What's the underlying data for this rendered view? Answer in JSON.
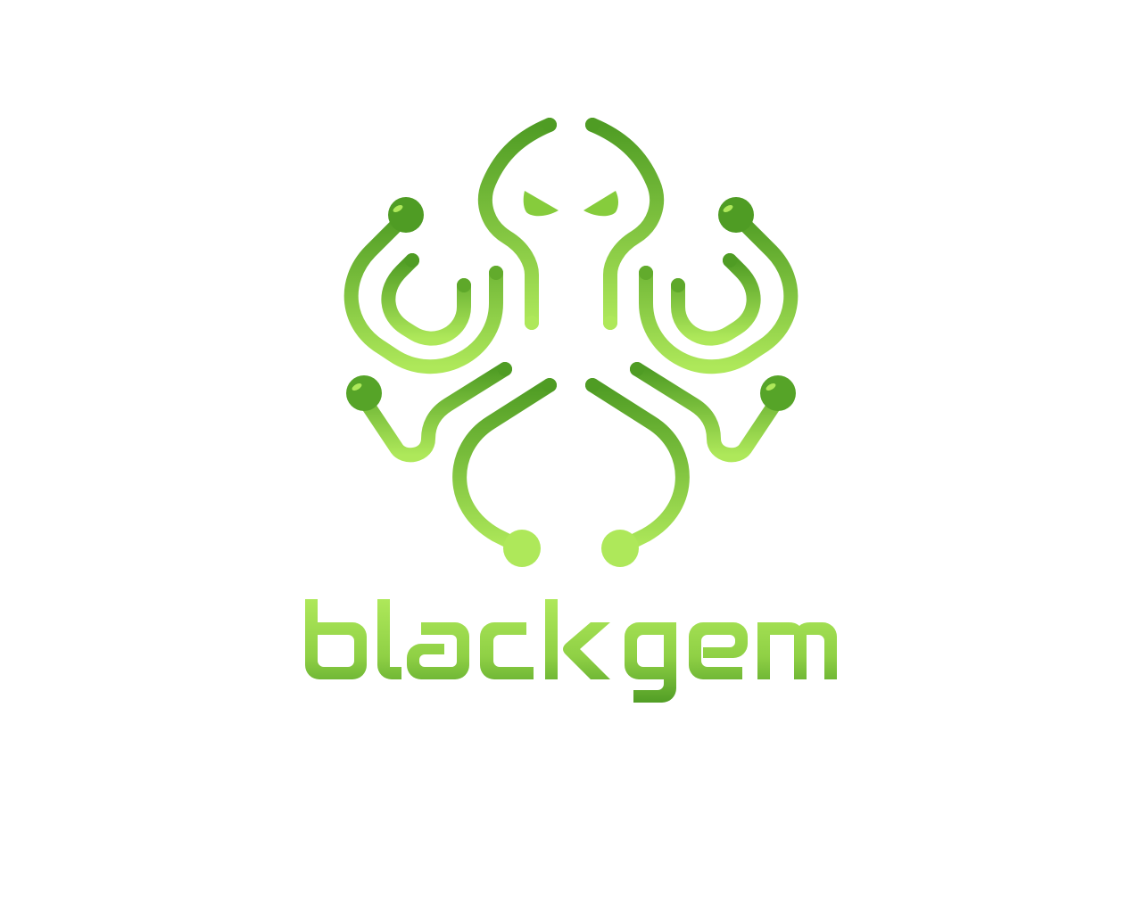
{
  "brand": {
    "wordmark": "blackgem",
    "logo_icon": "octopus-circuit-icon"
  },
  "colors": {
    "background": "#ffffff",
    "green_dark": "#4f9c24",
    "green_mid": "#78bd35",
    "green_light": "#aee85a"
  }
}
